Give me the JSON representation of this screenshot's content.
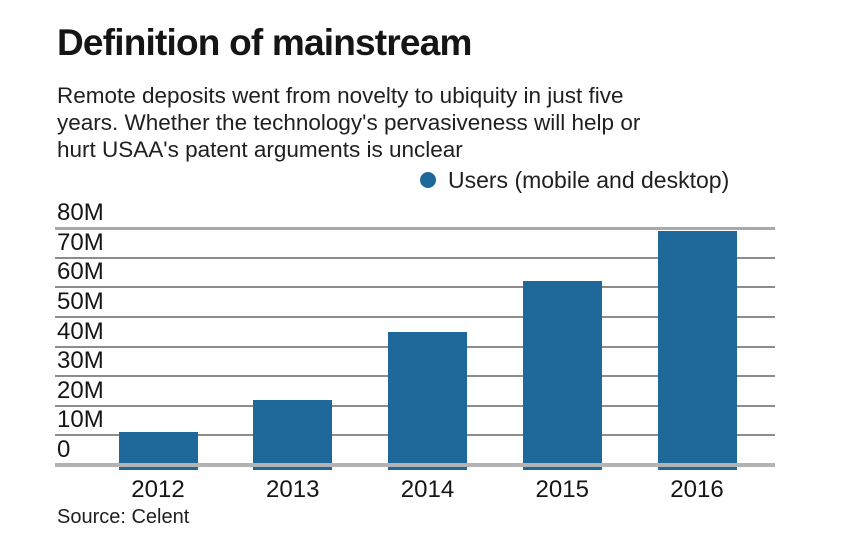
{
  "header": {
    "title": "Definition of mainstream",
    "subtitle_lines": [
      "Remote deposits went from novelty to ubiquity in just five",
      "years. Whether the technology's pervasiveness will help or",
      "hurt USAA's patent arguments is unclear"
    ]
  },
  "legend": {
    "label": "Users (mobile and desktop)",
    "dot_color": "#1f689a"
  },
  "chart_data": {
    "type": "bar",
    "title": "Definition of mainstream",
    "categories": [
      "2012",
      "2013",
      "2014",
      "2015",
      "2016"
    ],
    "series": [
      {
        "name": "Users (mobile and desktop)",
        "values": [
          11,
          22,
          45,
          62,
          79
        ]
      }
    ],
    "unit": "millions of users",
    "xlabel": "",
    "ylabel": "",
    "ylim": [
      0,
      80
    ],
    "ytick_step": 10,
    "ytick_labels": [
      "0",
      "10M",
      "20M",
      "30M",
      "40M",
      "50M",
      "60M",
      "70M",
      "80M"
    ],
    "grid": true,
    "legend_position": "top-right",
    "bar_color": "#1f689a",
    "gridline_color": "#8c8c8c",
    "baseline_color": "#b3b3b3"
  },
  "footer": {
    "source": "Source: Celent"
  }
}
